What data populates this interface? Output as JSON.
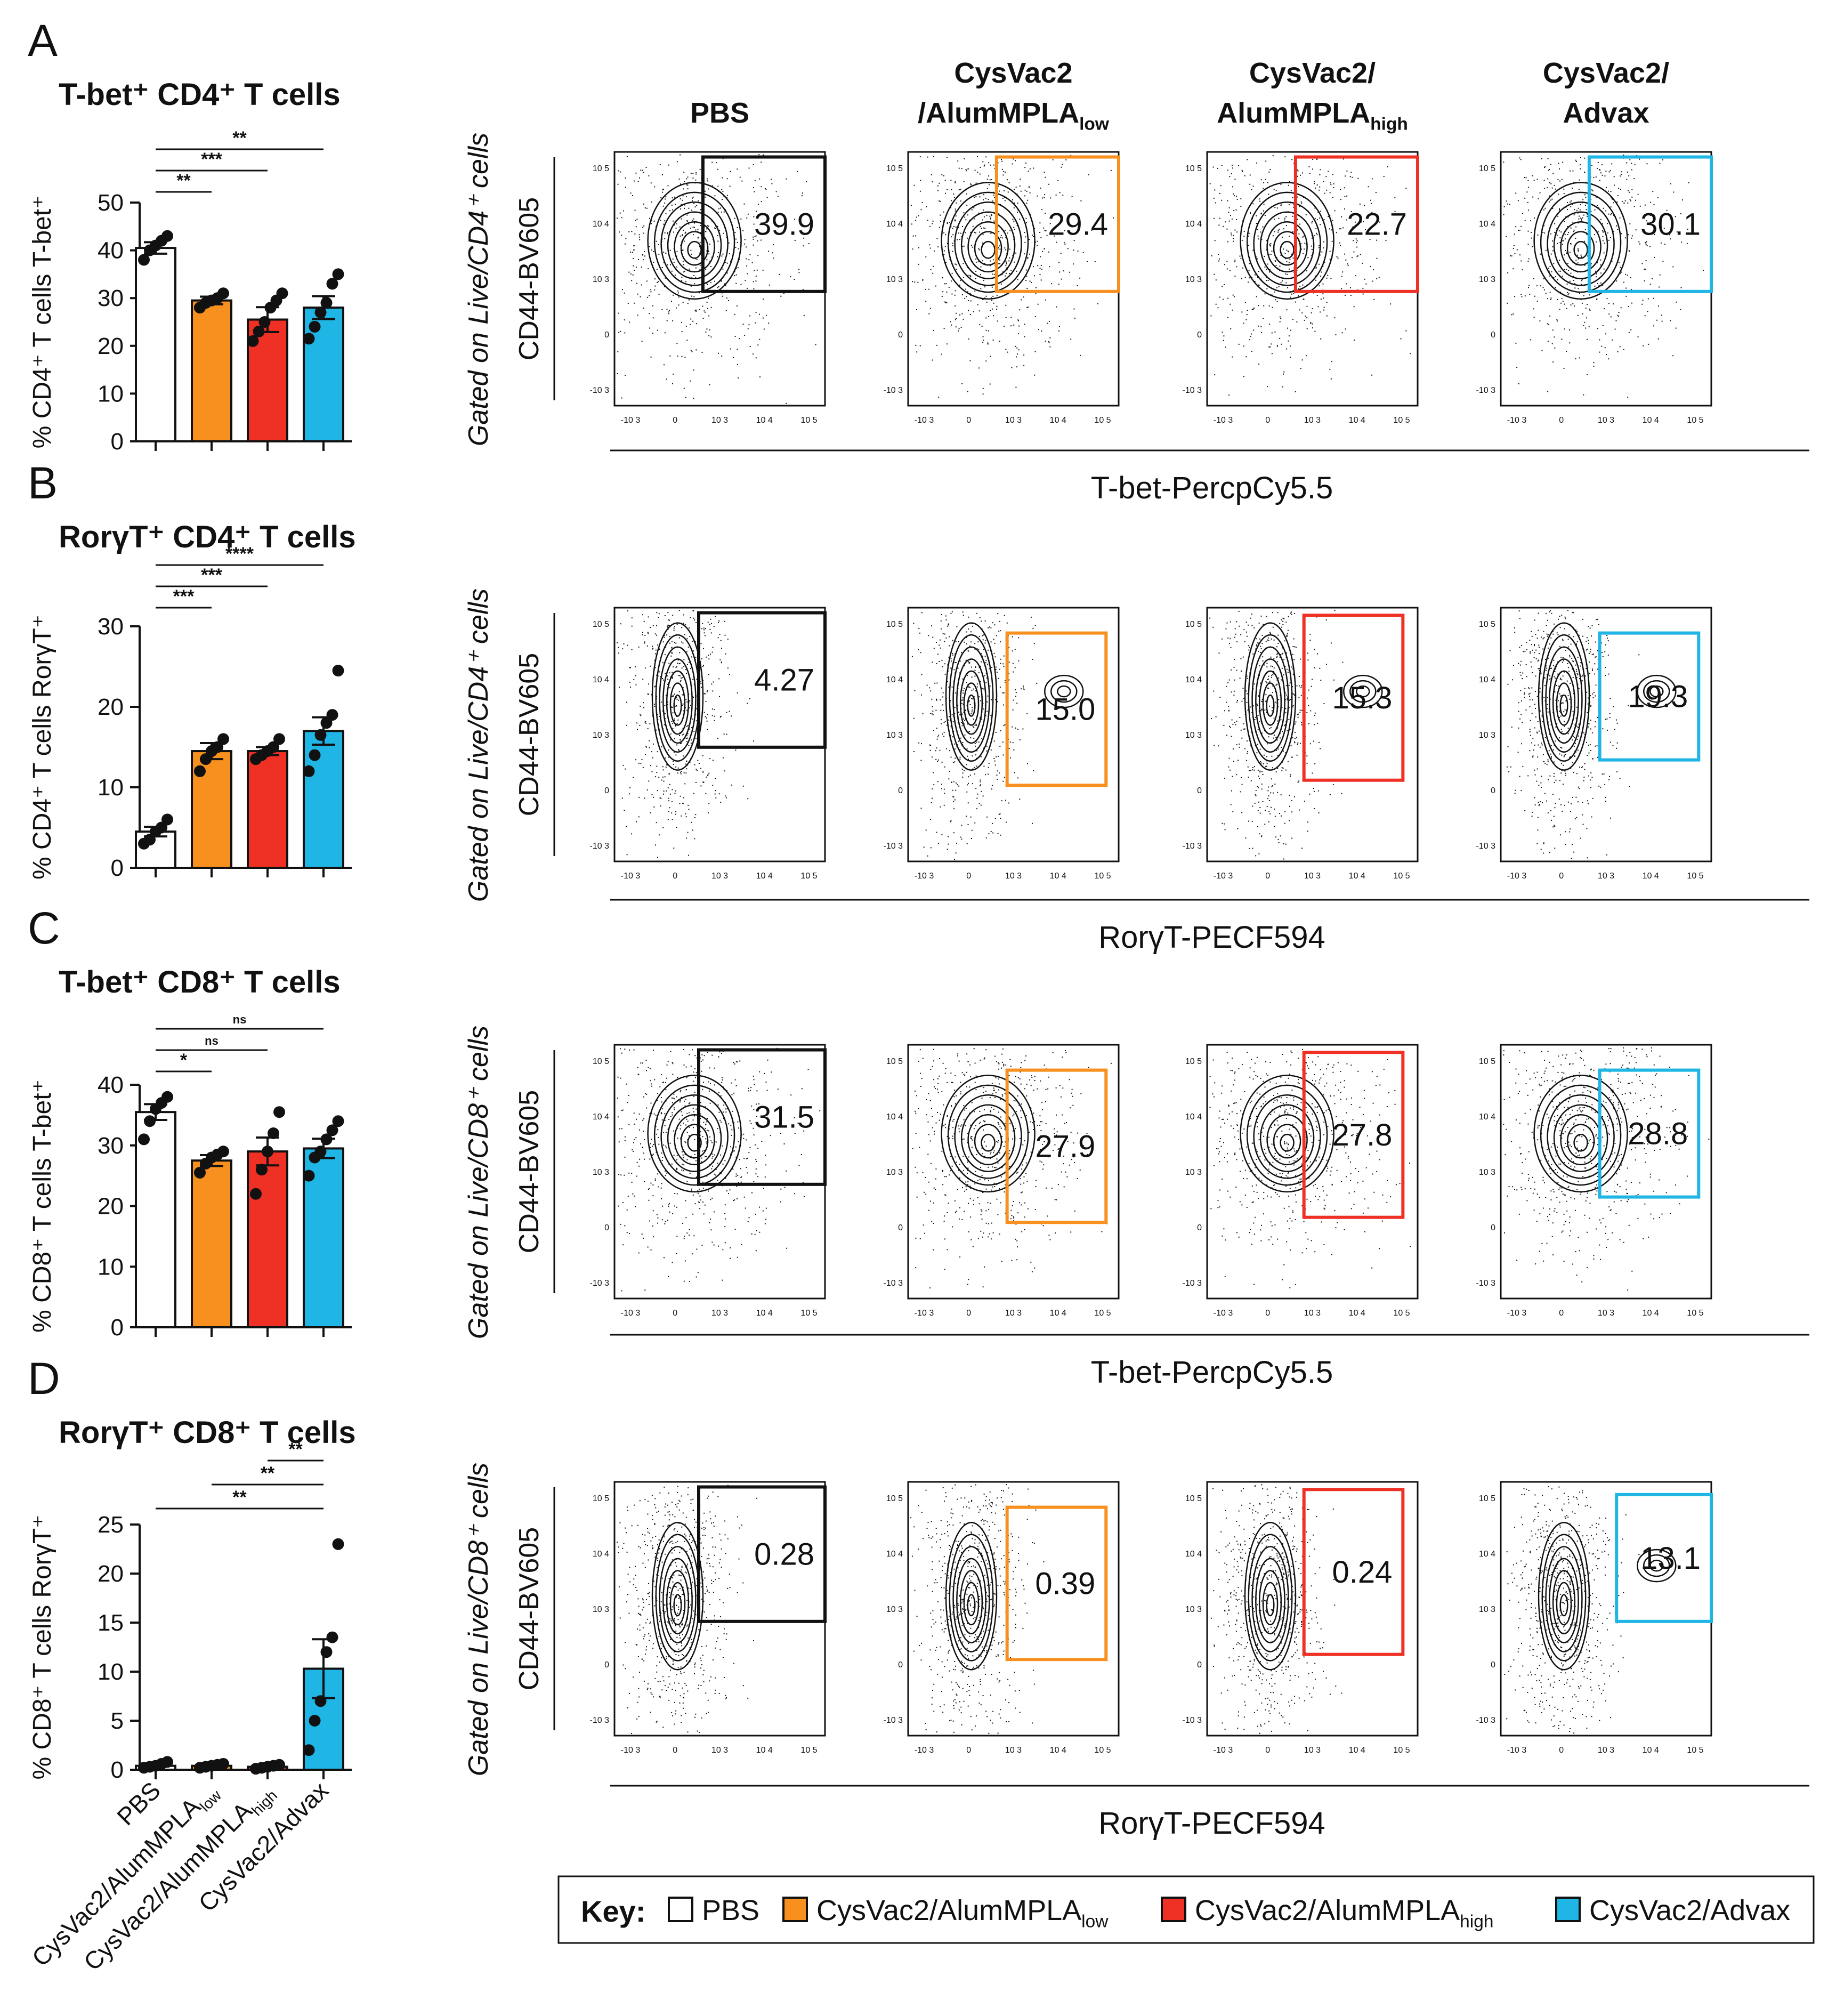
{
  "figure": {
    "col_headers": [
      {
        "main": "PBS",
        "sub": ""
      },
      {
        "main": "CysVac2",
        "sub": "/AlumMPLA",
        "subscript": "low"
      },
      {
        "main": "CysVac2/",
        "sub": "AlumMPLA",
        "subscript": "high"
      },
      {
        "main": "CysVac2/",
        "sub": "Advax",
        "subscript": ""
      }
    ],
    "key": {
      "label": "Key:",
      "entries": [
        {
          "text": "PBS",
          "sub": "",
          "color": "#ffffff"
        },
        {
          "text": "CysVac2/AlumMPLA",
          "sub": "low",
          "color": "#f7901e"
        },
        {
          "text": "CysVac2/AlumMPLA",
          "sub": "high",
          "color": "#ee3124"
        },
        {
          "text": "CysVac2/Advax",
          "sub": "",
          "color": "#1fb5e4"
        }
      ]
    },
    "group_colors": [
      "#ffffff",
      "#f7901e",
      "#ee3124",
      "#1fb5e4"
    ],
    "x_categories": [
      {
        "text": "PBS",
        "sub": ""
      },
      {
        "text": "CysVac2/AlumMPLA",
        "sub": "low"
      },
      {
        "text": "CysVac2/AlumMPLA",
        "sub": "high"
      },
      {
        "text": "CysVac2/Advax",
        "sub": ""
      }
    ],
    "flow_axis_ticks": {
      "x": [
        "-10 3",
        "0",
        "10 3",
        "10 4",
        "10 5"
      ],
      "y": [
        "10 5",
        "10 4",
        "10 3",
        "0",
        "-10 3"
      ]
    }
  },
  "chart_data": [
    {
      "panel": "A",
      "type": "bar",
      "title": "T-bet⁺ CD4⁺ T cells",
      "ylabel": "% CD4⁺ T cells T-bet⁺",
      "ylim": [
        0,
        50
      ],
      "yticks": [
        0,
        10,
        20,
        30,
        40,
        50
      ],
      "categories": [
        "PBS",
        "CysVac2/AlumMPLAlow",
        "CysVac2/AlumMPLAhigh",
        "CysVac2/Advax"
      ],
      "values": [
        40.5,
        29.5,
        25.5,
        28
      ],
      "errors": [
        1.2,
        0.8,
        2.6,
        2.4
      ],
      "points": [
        [
          38,
          40,
          41,
          42,
          43
        ],
        [
          28,
          29,
          29.5,
          30,
          31
        ],
        [
          21,
          23,
          25,
          28,
          29.5,
          31
        ],
        [
          21.5,
          24,
          27,
          29,
          33,
          35
        ]
      ],
      "significance": [
        {
          "from": 0,
          "to": 1,
          "label": "**"
        },
        {
          "from": 0,
          "to": 2,
          "label": "***"
        },
        {
          "from": 0,
          "to": 3,
          "label": "**"
        }
      ],
      "flow": {
        "gate_values": [
          "39.9",
          "29.4",
          "22.7",
          "30.1"
        ],
        "ylabel": "CD44-BV605",
        "gating": "Gated on Live/CD4⁺ cells",
        "xlabel": "T-bet-PercpCy5.5"
      }
    },
    {
      "panel": "B",
      "type": "bar",
      "title": "RorγT⁺ CD4⁺ T cells",
      "ylabel": "% CD4⁺ T cells RorγT⁺",
      "ylim": [
        0,
        30
      ],
      "yticks": [
        0,
        10,
        20,
        30
      ],
      "categories": [
        "PBS",
        "CysVac2/AlumMPLAlow",
        "CysVac2/AlumMPLAhigh",
        "CysVac2/Advax"
      ],
      "values": [
        4.5,
        14.5,
        14.5,
        17
      ],
      "errors": [
        0.6,
        1.0,
        0.5,
        1.7
      ],
      "points": [
        [
          3,
          3.5,
          4.5,
          5,
          6
        ],
        [
          12,
          13.5,
          14.5,
          15,
          16
        ],
        [
          13.5,
          14,
          14.5,
          15,
          16
        ],
        [
          12,
          14,
          16.5,
          18,
          19,
          24.5
        ]
      ],
      "significance": [
        {
          "from": 0,
          "to": 1,
          "label": "***"
        },
        {
          "from": 0,
          "to": 2,
          "label": "***"
        },
        {
          "from": 0,
          "to": 3,
          "label": "****"
        }
      ],
      "flow": {
        "gate_values": [
          "4.27",
          "15.0",
          "15.3",
          "19.3"
        ],
        "ylabel": "CD44-BV605",
        "gating": "Gated on Live/CD4⁺ cells",
        "xlabel": "RorγT-PECF594"
      }
    },
    {
      "panel": "C",
      "type": "bar",
      "title": "T-bet⁺ CD8⁺ T cells",
      "ylabel": "% CD8⁺ T cells T-bet⁺",
      "ylim": [
        0,
        40
      ],
      "yticks": [
        0,
        10,
        20,
        30,
        40
      ],
      "categories": [
        "PBS",
        "CysVac2/AlumMPLAlow",
        "CysVac2/AlumMPLAhigh",
        "CysVac2/Advax"
      ],
      "values": [
        35.5,
        27.5,
        29,
        29.5
      ],
      "errors": [
        1.3,
        0.9,
        2.3,
        1.6
      ],
      "points": [
        [
          31,
          34,
          36,
          37,
          38
        ],
        [
          25.5,
          27,
          28,
          28.5,
          29
        ],
        [
          22,
          26,
          29,
          32,
          35.5
        ],
        [
          25,
          28,
          29,
          31,
          32.5,
          34
        ]
      ],
      "significance": [
        {
          "from": 0,
          "to": 1,
          "label": "*"
        },
        {
          "from": 0,
          "to": 2,
          "label": "ns"
        },
        {
          "from": 0,
          "to": 3,
          "label": "ns"
        }
      ],
      "flow": {
        "gate_values": [
          "31.5",
          "27.9",
          "27.8",
          "28.8"
        ],
        "ylabel": "CD44-BV605",
        "gating": "Gated on Live/CD8⁺ cells",
        "xlabel": "T-bet-PercpCy5.5"
      }
    },
    {
      "panel": "D",
      "type": "bar",
      "title": "RorγT⁺ CD8⁺ T cells",
      "ylabel": "% CD8⁺ T cells RorγT⁺",
      "ylim": [
        0,
        25
      ],
      "yticks": [
        0,
        5,
        10,
        15,
        20,
        25
      ],
      "categories": [
        "PBS",
        "CysVac2/AlumMPLAlow",
        "CysVac2/AlumMPLAhigh",
        "CysVac2/Advax"
      ],
      "values": [
        0.4,
        0.4,
        0.3,
        10.3
      ],
      "errors": [
        0.1,
        0.1,
        0.1,
        3.0
      ],
      "points": [
        [
          0.2,
          0.3,
          0.4,
          0.6,
          0.8
        ],
        [
          0.2,
          0.3,
          0.4,
          0.5,
          0.6
        ],
        [
          0.1,
          0.2,
          0.3,
          0.4,
          0.5
        ],
        [
          2,
          5,
          7,
          12,
          13.5,
          23
        ]
      ],
      "significance": [
        {
          "from": 0,
          "to": 3,
          "label": "**"
        },
        {
          "from": 1,
          "to": 3,
          "label": "**"
        },
        {
          "from": 2,
          "to": 3,
          "label": "**"
        }
      ],
      "flow": {
        "gate_values": [
          "0.28",
          "0.39",
          "0.24",
          "13.1"
        ],
        "ylabel": "CD44-BV605",
        "gating": "Gated on Live/CD8⁺ cells",
        "xlabel": "RorγT-PECF594"
      }
    }
  ]
}
